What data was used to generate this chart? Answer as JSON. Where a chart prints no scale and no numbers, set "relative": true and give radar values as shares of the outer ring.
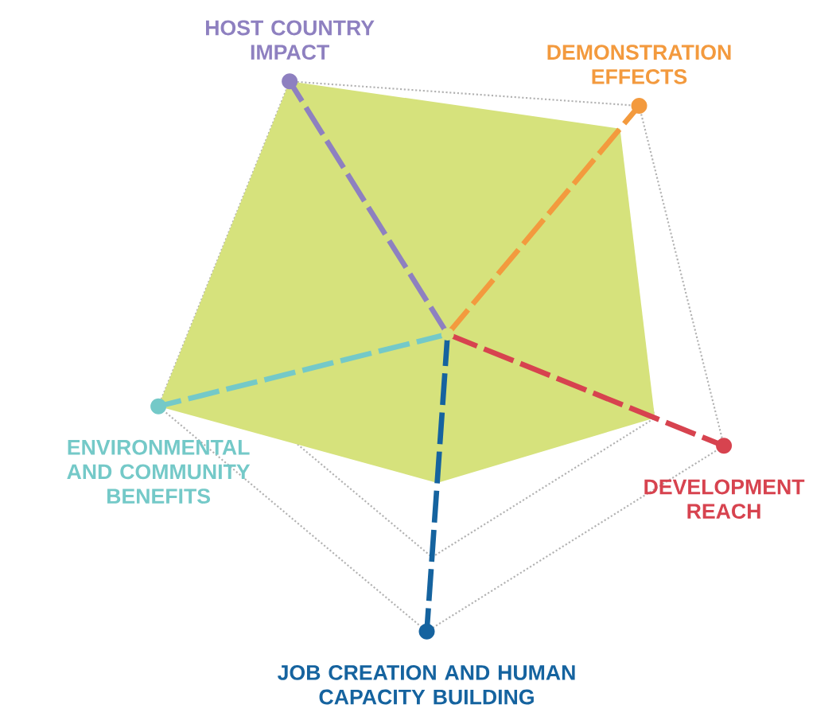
{
  "chart_data": {
    "type": "radar",
    "relative": true,
    "grid": true,
    "categories": [
      "HOST COUNTRY IMPACT",
      "DEMONSTRATION EFFECTS",
      "DEVELOPMENT REACH",
      "JOB CREATION AND HUMAN CAPACITY BUILDING",
      "ENVIRONMENTAL AND COMMUNITY BENEFITS"
    ],
    "colors": [
      "#8e80c0",
      "#f39a3e",
      "#d7434f",
      "#15639f",
      "#74c9c8"
    ],
    "series": [
      {
        "color": "#d6e27c",
        "values": [
          1,
          0.9,
          0.75,
          0.5,
          1
        ]
      }
    ]
  }
}
